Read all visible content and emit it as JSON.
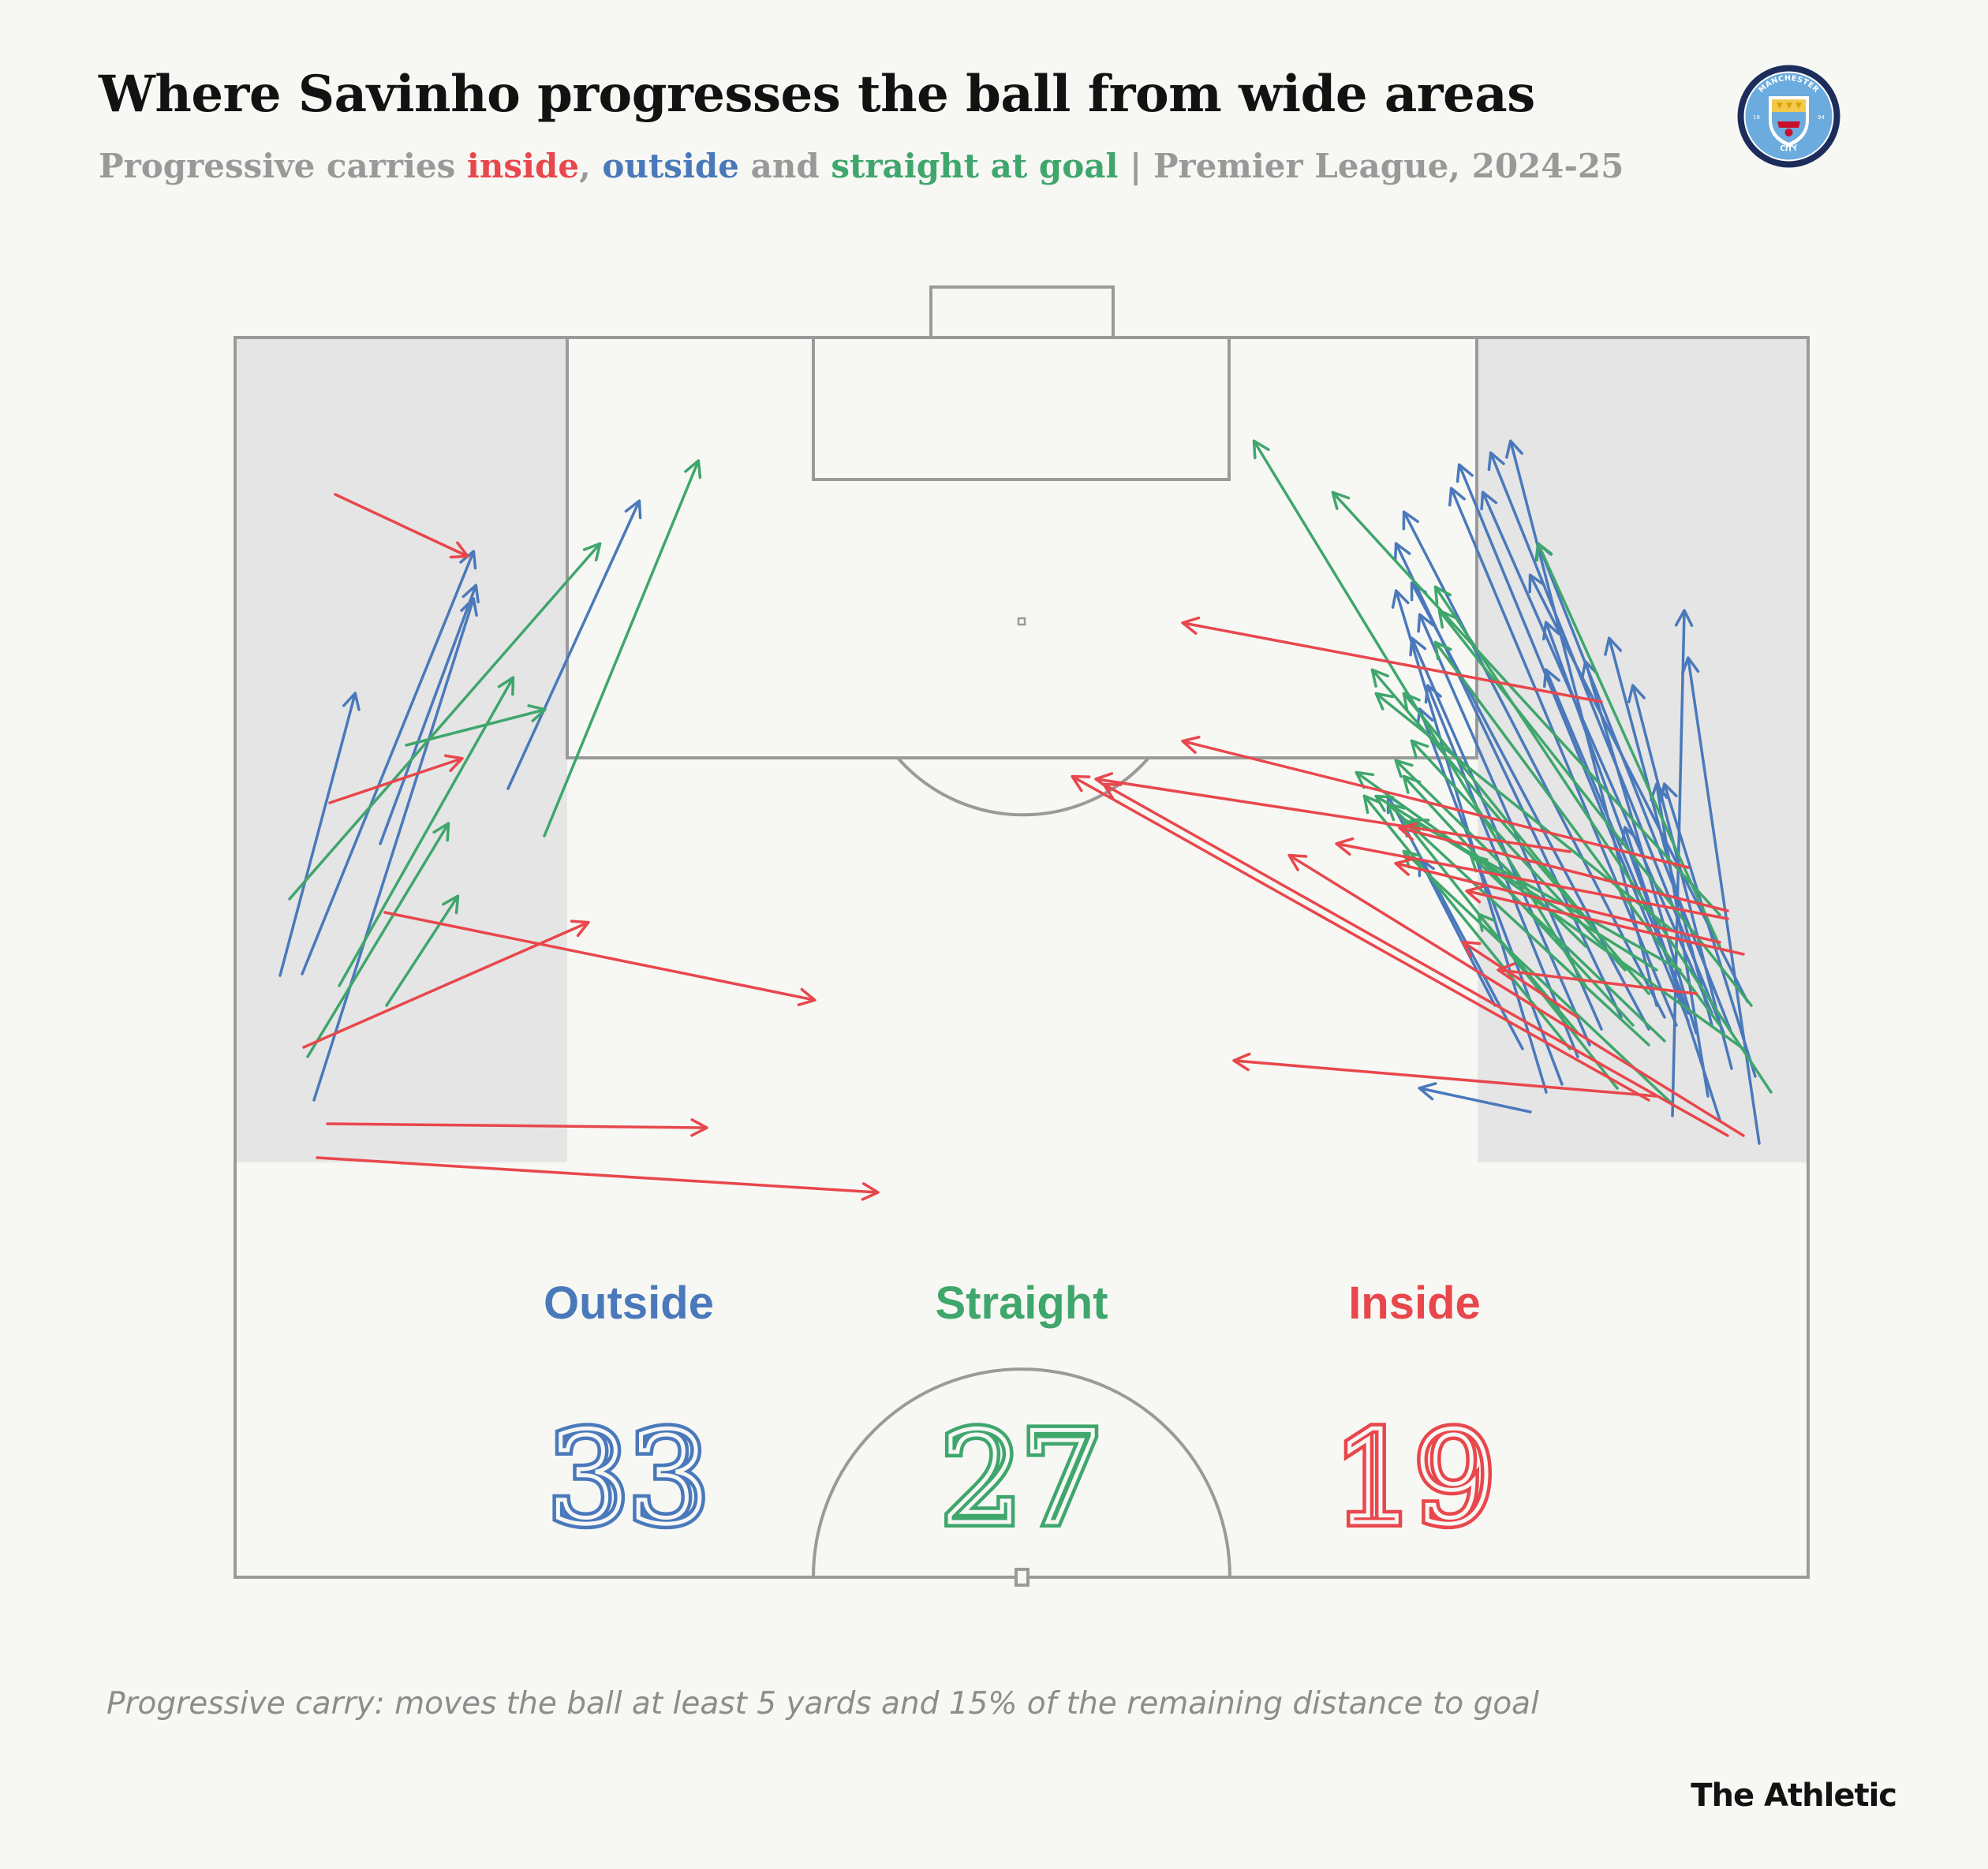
{
  "header": {
    "title": "Where Savinho progresses the ball from wide areas",
    "subtitle_pre": "Progressive carries ",
    "subtitle_inside": "inside",
    "subtitle_comma": ", ",
    "subtitle_outside": "outside",
    "subtitle_and": " and ",
    "subtitle_straight": "straight at goal",
    "subtitle_post": " | Premier League, 2024-25"
  },
  "logo": {
    "text_top": "MANCHESTER",
    "text_bottom": "CITY",
    "year_left": "18",
    "year_right": "94"
  },
  "footnote": "Progressive carry: moves the ball at least 5 yards and 15% of the remaining distance to goal",
  "brand": "The Athletic",
  "colors": {
    "outside": "#4a79bb",
    "straight": "#3fa66c",
    "inside": "#e8474c",
    "pitch_line": "#9a9a9a",
    "wide_zone": "#e5e5e5"
  },
  "chart_data": {
    "type": "flow-map",
    "summary": [
      {
        "key": "outside",
        "label": "Outside",
        "value": "33"
      },
      {
        "key": "straight",
        "label": "Straight",
        "value": "27"
      },
      {
        "key": "inside",
        "label": "Inside",
        "value": "19"
      }
    ],
    "carries": {
      "outside": [
        [
          355,
          1237,
          450,
          880
        ],
        [
          383,
          1235,
          600,
          700
        ],
        [
          398,
          1395,
          600,
          760
        ],
        [
          482,
          1070,
          603,
          743
        ],
        [
          644,
          1000,
          810,
          636
        ],
        [
          1940,
          1410,
          1800,
          1380
        ],
        [
          1960,
          1385,
          1770,
          750
        ],
        [
          1895,
          1275,
          1800,
          1090
        ],
        [
          1930,
          1330,
          1760,
          1010
        ],
        [
          1980,
          1375,
          1800,
          900
        ],
        [
          2000,
          1340,
          1810,
          870
        ],
        [
          2015,
          1325,
          1790,
          810
        ],
        [
          2030,
          1305,
          1800,
          780
        ],
        [
          2055,
          1290,
          1770,
          690
        ],
        [
          2090,
          1305,
          1790,
          740
        ],
        [
          2110,
          1290,
          1780,
          650
        ],
        [
          2125,
          1300,
          1840,
          620
        ],
        [
          2140,
          1295,
          1850,
          590
        ],
        [
          2170,
          1285,
          1880,
          625
        ],
        [
          2185,
          1310,
          1890,
          575
        ],
        [
          2100,
          1275,
          1915,
          560
        ],
        [
          2215,
          1270,
          1940,
          730
        ],
        [
          2195,
          1310,
          1950,
          690
        ],
        [
          2140,
          1285,
          1960,
          790
        ],
        [
          2130,
          1255,
          1960,
          850
        ],
        [
          2150,
          1310,
          2010,
          840
        ],
        [
          2170,
          1300,
          2040,
          810
        ],
        [
          2195,
          1355,
          2070,
          870
        ],
        [
          2225,
          1365,
          2110,
          995
        ],
        [
          2180,
          1420,
          2060,
          1050
        ],
        [
          2165,
          1390,
          2100,
          995
        ],
        [
          2120,
          1415,
          2135,
          775
        ],
        [
          2230,
          1450,
          2140,
          835
        ]
      ],
      "straight": [
        [
          367,
          1140,
          760,
          690
        ],
        [
          390,
          1340,
          568,
          1045
        ],
        [
          430,
          1250,
          650,
          860
        ],
        [
          490,
          1275,
          580,
          1137
        ],
        [
          515,
          945,
          690,
          900
        ],
        [
          690,
          1060,
          885,
          585
        ],
        [
          2010,
          1250,
          1590,
          560
        ],
        [
          2180,
          1160,
          1690,
          625
        ],
        [
          2180,
          1200,
          1950,
          690
        ],
        [
          2245,
          1385,
          1820,
          745
        ],
        [
          2220,
          1275,
          1825,
          775
        ],
        [
          2180,
          1300,
          1820,
          815
        ],
        [
          2090,
          1260,
          1740,
          850
        ],
        [
          2120,
          1180,
          1745,
          880
        ],
        [
          2035,
          1195,
          1780,
          880
        ],
        [
          2060,
          1230,
          1790,
          940
        ],
        [
          2010,
          1200,
          1770,
          965
        ],
        [
          2070,
          1300,
          1780,
          985
        ],
        [
          2100,
          1230,
          1745,
          1010
        ],
        [
          2130,
          1230,
          1790,
          1040
        ],
        [
          1990,
          1330,
          1730,
          1010
        ],
        [
          2090,
          1325,
          1760,
          1020
        ],
        [
          2000,
          1310,
          1875,
          1160
        ],
        [
          2210,
          1330,
          1720,
          980
        ],
        [
          2120,
          1400,
          1780,
          1080
        ],
        [
          2050,
          1380,
          1780,
          1040
        ],
        [
          2110,
          1320,
          1865,
          1085
        ]
      ],
      "inside": [
        [
          425,
          627,
          592,
          705
        ],
        [
          418,
          1018,
          585,
          962
        ],
        [
          385,
          1328,
          745,
          1170
        ],
        [
          488,
          1157,
          1032,
          1268
        ],
        [
          415,
          1425,
          895,
          1430
        ],
        [
          402,
          1468,
          1112,
          1512
        ],
        [
          2030,
          890,
          1500,
          790
        ],
        [
          2140,
          1100,
          1500,
          940
        ],
        [
          1990,
          1080,
          1390,
          988
        ],
        [
          2100,
          1390,
          1565,
          1345
        ],
        [
          2210,
          1440,
          1635,
          1085
        ],
        [
          2190,
          1440,
          1400,
          995
        ],
        [
          2090,
          1395,
          1360,
          985
        ],
        [
          2190,
          1165,
          1695,
          1070
        ],
        [
          2190,
          1155,
          1775,
          1050
        ],
        [
          2180,
          1195,
          1770,
          1095
        ],
        [
          2210,
          1210,
          1860,
          1130
        ],
        [
          2000,
          1290,
          1855,
          1195
        ],
        [
          2150,
          1260,
          1900,
          1230
        ]
      ]
    }
  }
}
